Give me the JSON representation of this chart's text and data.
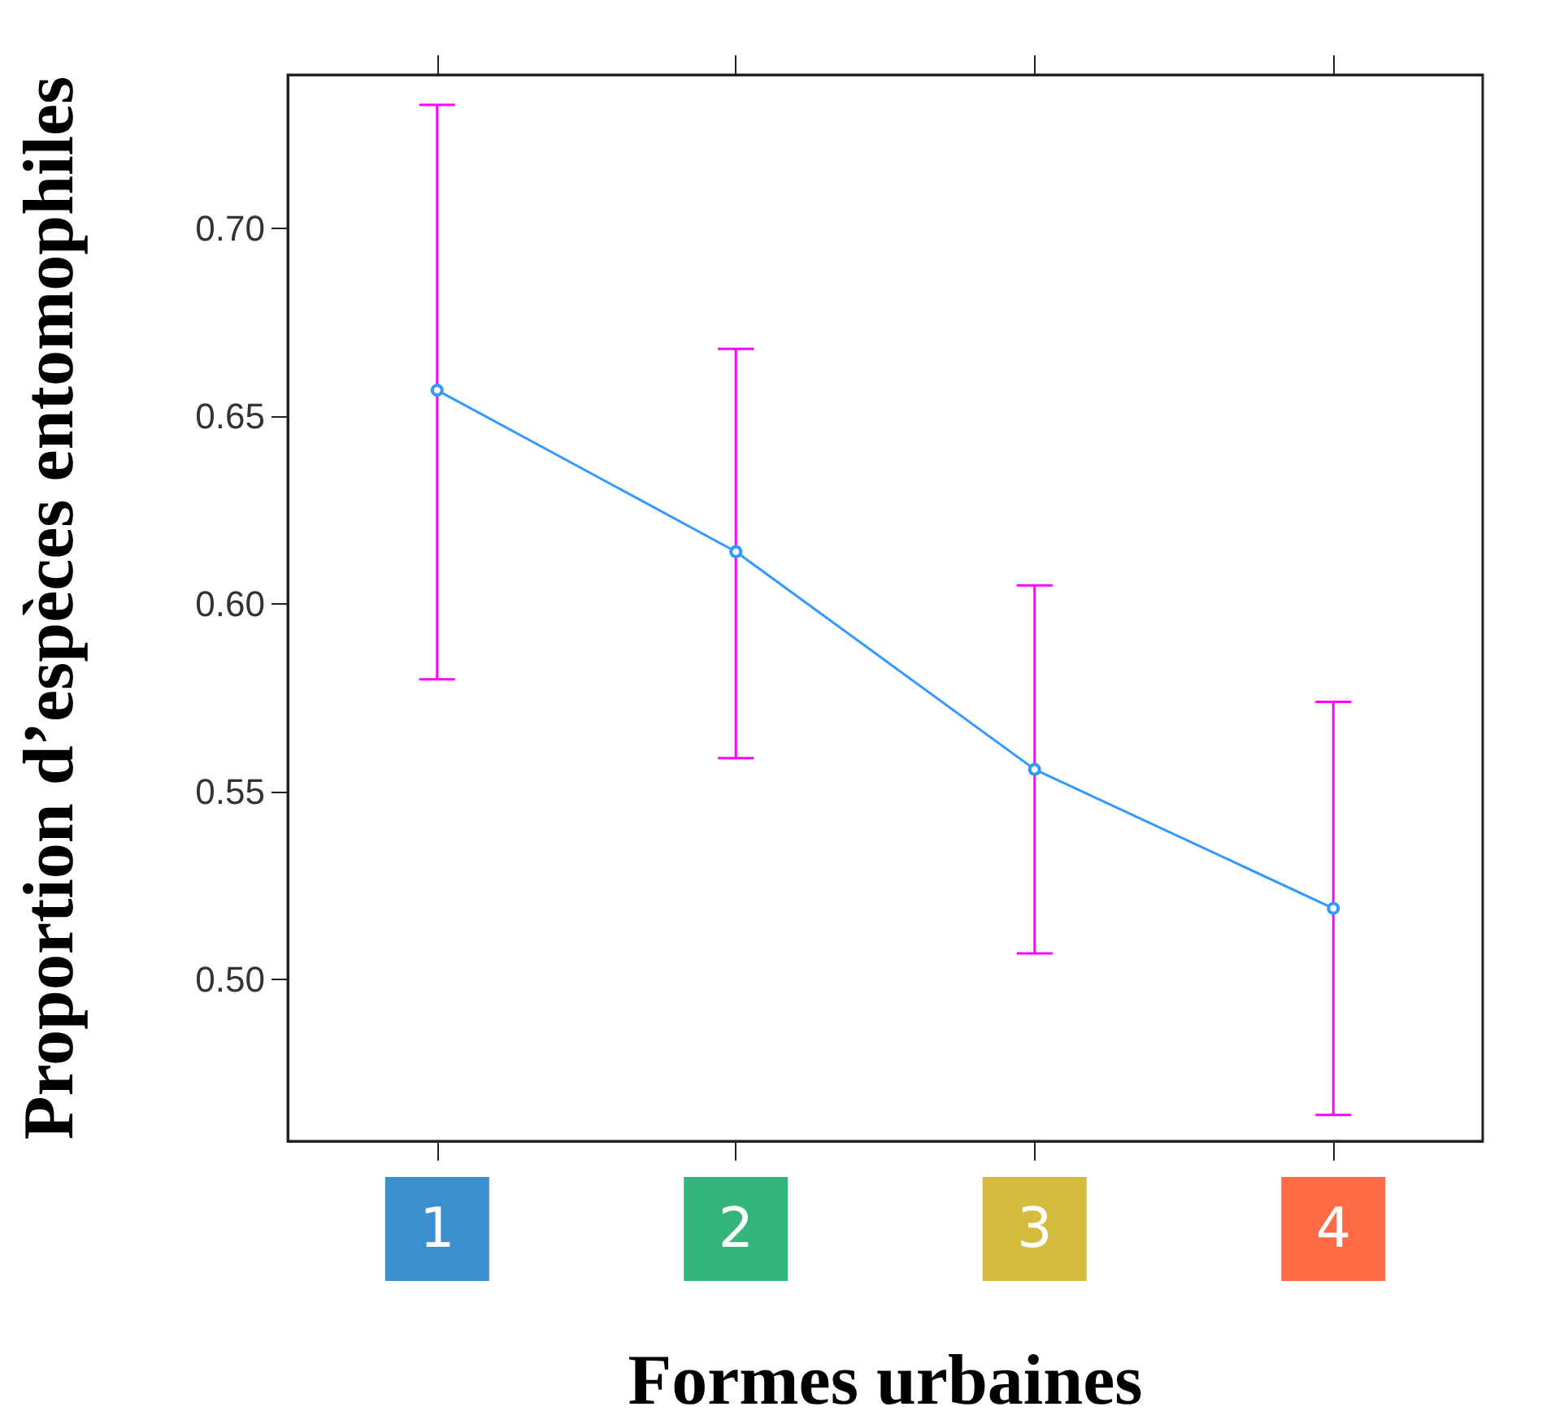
{
  "chart_data": {
    "type": "line",
    "xlabel": "Formes urbaines",
    "ylabel": "Proportion d’espèces entomophiles",
    "categories": [
      "1",
      "2",
      "3",
      "4"
    ],
    "series": [
      {
        "color": "#3399ff",
        "values": [
          0.657,
          0.614,
          0.556,
          0.519
        ],
        "errors": [
          [
            0.58,
            0.733
          ],
          [
            0.559,
            0.668
          ],
          [
            0.507,
            0.605
          ],
          [
            0.464,
            0.574
          ]
        ]
      }
    ],
    "ylim": [
      0.457,
      0.741
    ],
    "yticks": [
      {
        "value": 0.5,
        "label": "0.50"
      },
      {
        "value": 0.55,
        "label": "0.55"
      },
      {
        "value": 0.6,
        "label": "0.60"
      },
      {
        "value": 0.65,
        "label": "0.65"
      },
      {
        "value": 0.7,
        "label": "0.70"
      }
    ],
    "grid": false,
    "marker": "circle",
    "line_style": "solid"
  }
}
